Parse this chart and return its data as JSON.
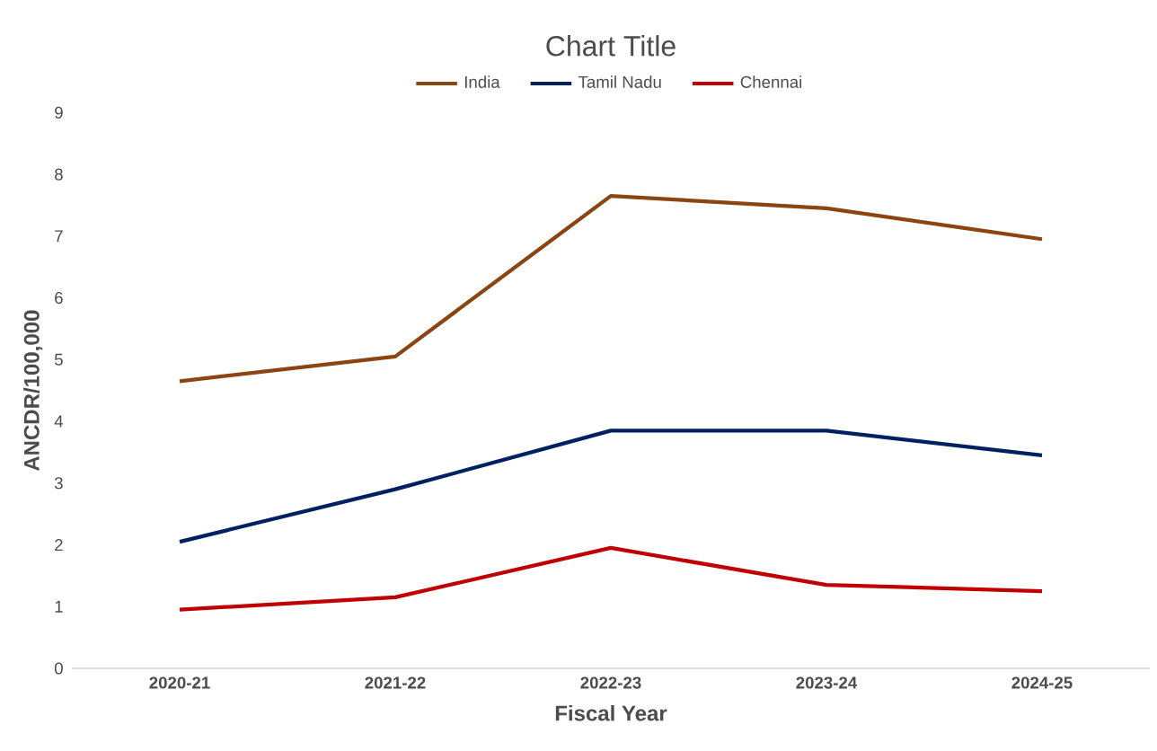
{
  "chart_data": {
    "type": "line",
    "title": "Chart Title",
    "xlabel": "Fiscal Year",
    "ylabel": "ANCDR/100,000",
    "categories": [
      "2020-21",
      "2021-22",
      "2022-23",
      "2023-24",
      "2024-25"
    ],
    "series": [
      {
        "name": "India",
        "color": "#8b4513",
        "values": [
          4.65,
          5.05,
          7.65,
          7.45,
          6.95
        ]
      },
      {
        "name": "Tamil Nadu",
        "color": "#002060",
        "values": [
          2.05,
          2.9,
          3.85,
          3.85,
          3.45
        ]
      },
      {
        "name": "Chennai",
        "color": "#c00000",
        "values": [
          0.95,
          1.15,
          1.95,
          1.35,
          1.25
        ]
      }
    ],
    "ylim": [
      0,
      9
    ],
    "yticks": [
      0,
      1,
      2,
      3,
      4,
      5,
      6,
      7,
      8,
      9
    ],
    "grid": false,
    "legend": "top",
    "marker": "none",
    "line_style": "solid"
  }
}
